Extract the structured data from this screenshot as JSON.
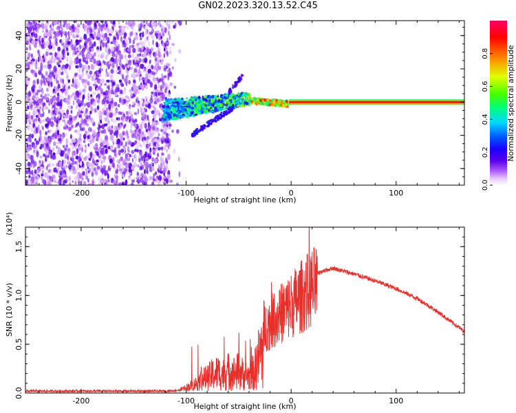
{
  "figure_title": "GN02.2023.320.13.52.C45",
  "colors": {
    "snr_line": "#e8302a",
    "colormap": [
      "#ffffff",
      "#e6c8ff",
      "#a855f7",
      "#5b00e8",
      "#1a00ff",
      "#0060ff",
      "#00d8ff",
      "#00ff80",
      "#40ff00",
      "#e0ff00",
      "#ff8000",
      "#ff0000",
      "#ff0066"
    ]
  },
  "chart_data": [
    {
      "type": "heatmap",
      "title": "",
      "xlabel": "Height of straight line (km)",
      "ylabel": "Frequency (Hz)",
      "xlim": [
        -253,
        165
      ],
      "ylim": [
        -50,
        49
      ],
      "xticks": [
        "-200",
        "-100",
        "0",
        "100"
      ],
      "xtick_values": [
        -200,
        -100,
        0,
        100
      ],
      "yticks": [
        "-40",
        "-20",
        "0",
        "20",
        "40"
      ],
      "ytick_values": [
        -40,
        -20,
        0,
        20,
        40
      ],
      "grid": false,
      "colorbar": {
        "label": "Normalized spectral amplitude",
        "range": [
          0,
          1
        ],
        "ticks": [
          "0.0",
          "0.2",
          "0.4",
          "0.6",
          "0.8"
        ],
        "tick_values": [
          0.0,
          0.2,
          0.4,
          0.6,
          0.8
        ]
      },
      "regions": [
        {
          "x_range": [
            -253,
            -115
          ],
          "y_range": [
            -50,
            49
          ],
          "amplitude": "0.0-0.2 broadband noise"
        },
        {
          "x_range": [
            -120,
            -40
          ],
          "center_freq_hz": [
            -5,
            2
          ],
          "amplitude": "0.2-0.7 chirp"
        },
        {
          "x_range": [
            -40,
            -5
          ],
          "center_freq_hz": [
            1,
            -1
          ],
          "amplitude": "0.5-0.9"
        },
        {
          "x_range": [
            0,
            165
          ],
          "center_freq_hz": [
            0,
            0
          ],
          "amplitude": "0.9-1.0 tonal line"
        }
      ]
    },
    {
      "type": "line",
      "title": "",
      "xlabel": "Height of straight line (km)",
      "ylabel": "SNR (10 * v/v)",
      "scale_label": "(x10⁴)",
      "xlim": [
        -253,
        165
      ],
      "ylim": [
        0,
        1.7
      ],
      "xticks": [
        "-200",
        "-100",
        "0",
        "100"
      ],
      "xtick_values": [
        -200,
        -100,
        0,
        100
      ],
      "yticks": [
        "0.0",
        "0.5",
        "1.0",
        "1.5"
      ],
      "ytick_values": [
        0.0,
        0.5,
        1.0,
        1.5
      ],
      "grid": false,
      "series": [
        {
          "x": [
            -253,
            -230,
            -200,
            -170,
            -140,
            -120,
            -105,
            -95,
            -90,
            -85,
            -80,
            -75,
            -70,
            -65,
            -60,
            -55,
            -50,
            -45,
            -40,
            -35,
            -30,
            -25,
            -20,
            -15,
            -10,
            -5,
            0,
            5,
            10,
            20,
            30,
            40,
            50,
            60,
            80,
            100,
            120,
            140,
            165
          ],
          "y": [
            0.02,
            0.02,
            0.02,
            0.02,
            0.02,
            0.02,
            0.03,
            0.08,
            0.12,
            0.18,
            0.2,
            0.25,
            0.28,
            0.25,
            0.3,
            0.27,
            0.3,
            0.25,
            0.22,
            0.3,
            0.55,
            0.75,
            0.8,
            0.85,
            0.9,
            0.95,
            1.0,
            1.05,
            1.1,
            1.2,
            1.25,
            1.28,
            1.25,
            1.22,
            1.15,
            1.07,
            0.97,
            0.83,
            0.63
          ]
        }
      ]
    }
  ]
}
